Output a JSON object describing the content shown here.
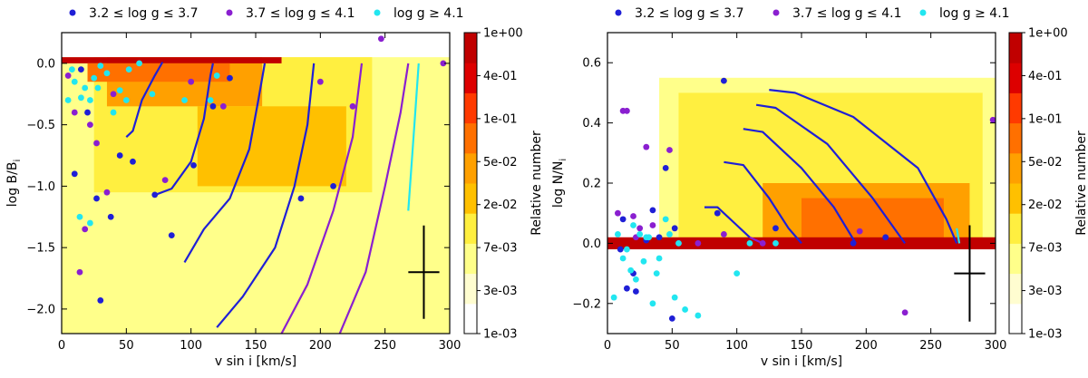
{
  "colors": {
    "blue": "#1f1fd6",
    "purple": "#8a1fd0",
    "cyan": "#22e6f0",
    "heat": [
      "#fffdd0",
      "#ffff8a",
      "#ffef40",
      "#ffc000",
      "#ffa000",
      "#ff7000",
      "#ff3a00",
      "#dd0000",
      "#c00000"
    ]
  },
  "chart_data": [
    {
      "type": "scatter+heatmap",
      "xlabel": "v sin i [km/s]",
      "ylabel": "log B/B",
      "ylabel_sub": "i",
      "xlim": [
        0,
        300
      ],
      "ylim": [
        -2.2,
        0.25
      ],
      "xticks": [
        0,
        50,
        100,
        150,
        200,
        250,
        300
      ],
      "yticks": [
        0.0,
        -0.5,
        -1.0,
        -1.5,
        -2.0
      ],
      "ytick_labels": [
        "0.0",
        "−0.5",
        "−1.0",
        "−1.5",
        "−2.0"
      ],
      "legend": [
        "3.2 ≤ log g ≤ 3.7",
        "3.7 ≤ log g ≤ 4.1",
        "log g ≥ 4.1"
      ],
      "colorbar": {
        "label": "Relative number",
        "ticks": [
          "1e+00",
          "4e-01",
          "1e-01",
          "5e-02",
          "2e-02",
          "7e-03",
          "3e-03",
          "1e-03"
        ]
      },
      "error_bar": {
        "x": 280,
        "y": -1.7,
        "dx": 12,
        "dy": 0.38
      },
      "heat_blocks": [
        {
          "x": [
            0,
            300
          ],
          "y": [
            -2.2,
            0.05
          ],
          "level": 1
        },
        {
          "x": [
            25,
            240
          ],
          "y": [
            -1.05,
            0.05
          ],
          "level": 2
        },
        {
          "x": [
            35,
            155
          ],
          "y": [
            -0.35,
            0.05
          ],
          "level": 4
        },
        {
          "x": [
            105,
            220
          ],
          "y": [
            -1.0,
            -0.35
          ],
          "level": 3
        },
        {
          "x": [
            0,
            170
          ],
          "y": [
            0.0,
            0.05
          ],
          "level": 8
        },
        {
          "x": [
            20,
            130
          ],
          "y": [
            -0.15,
            0.0
          ],
          "level": 5
        }
      ],
      "tracks": [
        {
          "color": "blue",
          "pts": [
            [
              50,
              -0.6
            ],
            [
              55,
              -0.55
            ],
            [
              62,
              -0.3
            ],
            [
              72,
              -0.1
            ],
            [
              78,
              0.01
            ]
          ]
        },
        {
          "color": "blue",
          "pts": [
            [
              70,
              -1.08
            ],
            [
              85,
              -1.02
            ],
            [
              100,
              -0.8
            ],
            [
              110,
              -0.45
            ],
            [
              115,
              -0.1
            ],
            [
              117,
              0.0
            ]
          ]
        },
        {
          "color": "blue",
          "pts": [
            [
              95,
              -1.62
            ],
            [
              110,
              -1.35
            ],
            [
              130,
              -1.1
            ],
            [
              145,
              -0.7
            ],
            [
              152,
              -0.3
            ],
            [
              157,
              0.0
            ]
          ]
        },
        {
          "color": "blue",
          "pts": [
            [
              120,
              -2.15
            ],
            [
              140,
              -1.9
            ],
            [
              165,
              -1.5
            ],
            [
              180,
              -1.0
            ],
            [
              190,
              -0.5
            ],
            [
              195,
              0.0
            ]
          ]
        },
        {
          "color": "purple",
          "pts": [
            [
              170,
              -2.2
            ],
            [
              190,
              -1.8
            ],
            [
              210,
              -1.2
            ],
            [
              225,
              -0.6
            ],
            [
              232,
              0.0
            ]
          ]
        },
        {
          "color": "purple",
          "pts": [
            [
              215,
              -2.2
            ],
            [
              235,
              -1.7
            ],
            [
              250,
              -1.0
            ],
            [
              262,
              -0.4
            ],
            [
              268,
              0.0
            ]
          ]
        },
        {
          "color": "cyan",
          "pts": [
            [
              268,
              -1.2
            ],
            [
              272,
              -0.6
            ],
            [
              276,
              0.0
            ]
          ]
        }
      ],
      "blue_pts": [
        [
          10,
          -0.9
        ],
        [
          15,
          -0.05
        ],
        [
          20,
          -0.4
        ],
        [
          27,
          -1.1
        ],
        [
          30,
          -1.93
        ],
        [
          38,
          -1.25
        ],
        [
          45,
          -0.75
        ],
        [
          55,
          -0.8
        ],
        [
          72,
          -1.07
        ],
        [
          85,
          -1.4
        ],
        [
          102,
          -0.83
        ],
        [
          117,
          -0.35
        ],
        [
          130,
          -0.12
        ],
        [
          185,
          -1.1
        ],
        [
          210,
          -1.0
        ]
      ],
      "purple_pts": [
        [
          5,
          -0.1
        ],
        [
          10,
          -0.4
        ],
        [
          14,
          -1.7
        ],
        [
          18,
          -1.35
        ],
        [
          22,
          -0.5
        ],
        [
          27,
          -0.65
        ],
        [
          35,
          -1.05
        ],
        [
          40,
          -0.25
        ],
        [
          80,
          -0.95
        ],
        [
          100,
          -0.15
        ],
        [
          125,
          -0.35
        ],
        [
          200,
          -0.15
        ],
        [
          225,
          -0.35
        ],
        [
          247,
          0.2
        ],
        [
          295,
          0.0
        ]
      ],
      "cyan_pts": [
        [
          5,
          -0.3
        ],
        [
          8,
          -0.05
        ],
        [
          10,
          -0.15
        ],
        [
          15,
          -0.28
        ],
        [
          18,
          -0.2
        ],
        [
          22,
          -0.3
        ],
        [
          25,
          -0.12
        ],
        [
          28,
          -0.2
        ],
        [
          30,
          -0.02
        ],
        [
          35,
          -0.08
        ],
        [
          40,
          -0.4
        ],
        [
          45,
          -0.22
        ],
        [
          50,
          -0.3
        ],
        [
          52,
          -0.05
        ],
        [
          60,
          0.0
        ],
        [
          70,
          -0.25
        ],
        [
          95,
          -0.3
        ],
        [
          115,
          -0.3
        ],
        [
          120,
          -0.1
        ],
        [
          14,
          -1.25
        ],
        [
          22,
          -1.3
        ]
      ]
    },
    {
      "type": "scatter+heatmap",
      "xlabel": "v sin i [km/s]",
      "ylabel": "log N/N",
      "ylabel_sub": "i",
      "xlim": [
        0,
        300
      ],
      "ylim": [
        -0.3,
        0.7
      ],
      "xticks": [
        0,
        50,
        100,
        150,
        200,
        250,
        300
      ],
      "yticks": [
        -0.2,
        0.0,
        0.2,
        0.4,
        0.6
      ],
      "ytick_labels": [
        "−0.2",
        "0.0",
        "0.2",
        "0.4",
        "0.6"
      ],
      "legend": [
        "3.2 ≤ log g ≤ 3.7",
        "3.7 ≤ log g ≤ 4.1",
        "log g ≥ 4.1"
      ],
      "colorbar": {
        "label": "Relative number",
        "ticks": [
          "1e+00",
          "4e-01",
          "1e-01",
          "5e-02",
          "2e-02",
          "7e-03",
          "3e-03",
          "1e-03"
        ]
      },
      "error_bar": {
        "x": 280,
        "y": -0.1,
        "dx": 12,
        "dy": 0.16
      },
      "heat_blocks": [
        {
          "x": [
            40,
            300
          ],
          "y": [
            0.0,
            0.55
          ],
          "level": 1
        },
        {
          "x": [
            55,
            290
          ],
          "y": [
            0.0,
            0.5
          ],
          "level": 2
        },
        {
          "x": [
            120,
            280
          ],
          "y": [
            0.0,
            0.2
          ],
          "level": 4
        },
        {
          "x": [
            150,
            260
          ],
          "y": [
            0.02,
            0.15
          ],
          "level": 5
        },
        {
          "x": [
            0,
            300
          ],
          "y": [
            -0.02,
            0.02
          ],
          "level": 8
        }
      ],
      "tracks": [
        {
          "color": "blue",
          "pts": [
            [
              75,
              0.12
            ],
            [
              85,
              0.12
            ],
            [
              100,
              0.06
            ],
            [
              110,
              0.02
            ]
          ]
        },
        {
          "color": "blue",
          "pts": [
            [
              90,
              0.27
            ],
            [
              105,
              0.26
            ],
            [
              125,
              0.15
            ],
            [
              140,
              0.05
            ],
            [
              150,
              0.0
            ]
          ]
        },
        {
          "color": "blue",
          "pts": [
            [
              105,
              0.38
            ],
            [
              120,
              0.37
            ],
            [
              150,
              0.25
            ],
            [
              175,
              0.12
            ],
            [
              192,
              0.0
            ]
          ]
        },
        {
          "color": "blue",
          "pts": [
            [
              115,
              0.46
            ],
            [
              130,
              0.45
            ],
            [
              170,
              0.33
            ],
            [
              205,
              0.15
            ],
            [
              230,
              0.0
            ]
          ]
        },
        {
          "color": "blue",
          "pts": [
            [
              125,
              0.51
            ],
            [
              145,
              0.5
            ],
            [
              190,
              0.42
            ],
            [
              240,
              0.25
            ],
            [
              262,
              0.08
            ],
            [
              270,
              0.0
            ]
          ]
        },
        {
          "color": "purple",
          "pts": [
            [
              110,
              0.02
            ],
            [
              120,
              0.0
            ]
          ]
        },
        {
          "color": "cyan",
          "pts": [
            [
              270,
              0.05
            ],
            [
              272,
              0.0
            ]
          ]
        }
      ],
      "blue_pts": [
        [
          10,
          -0.02
        ],
        [
          12,
          0.08
        ],
        [
          15,
          -0.15
        ],
        [
          20,
          -0.1
        ],
        [
          22,
          -0.16
        ],
        [
          30,
          0.01
        ],
        [
          35,
          0.11
        ],
        [
          40,
          0.02
        ],
        [
          45,
          0.25
        ],
        [
          50,
          -0.25
        ],
        [
          52,
          0.05
        ],
        [
          85,
          0.1
        ],
        [
          90,
          0.54
        ],
        [
          130,
          0.05
        ],
        [
          190,
          0.0
        ],
        [
          215,
          0.02
        ]
      ],
      "purple_pts": [
        [
          8,
          0.1
        ],
        [
          12,
          0.44
        ],
        [
          15,
          0.44
        ],
        [
          20,
          0.09
        ],
        [
          22,
          0.02
        ],
        [
          25,
          0.05
        ],
        [
          30,
          0.32
        ],
        [
          35,
          0.06
        ],
        [
          48,
          0.31
        ],
        [
          55,
          0.0
        ],
        [
          70,
          0.0
        ],
        [
          90,
          0.03
        ],
        [
          120,
          0.0
        ],
        [
          195,
          0.04
        ],
        [
          230,
          -0.23
        ],
        [
          298,
          0.41
        ]
      ],
      "cyan_pts": [
        [
          5,
          -0.18
        ],
        [
          8,
          0.03
        ],
        [
          12,
          -0.05
        ],
        [
          15,
          -0.02
        ],
        [
          18,
          -0.09
        ],
        [
          20,
          0.06
        ],
        [
          22,
          -0.12
        ],
        [
          25,
          0.03
        ],
        [
          28,
          -0.06
        ],
        [
          30,
          0.02
        ],
        [
          32,
          0.02
        ],
        [
          35,
          -0.2
        ],
        [
          38,
          -0.1
        ],
        [
          40,
          -0.05
        ],
        [
          45,
          0.08
        ],
        [
          48,
          0.03
        ],
        [
          52,
          -0.18
        ],
        [
          55,
          0.0
        ],
        [
          60,
          -0.22
        ],
        [
          70,
          -0.24
        ],
        [
          100,
          -0.1
        ],
        [
          110,
          0.0
        ],
        [
          130,
          0.0
        ]
      ]
    }
  ]
}
